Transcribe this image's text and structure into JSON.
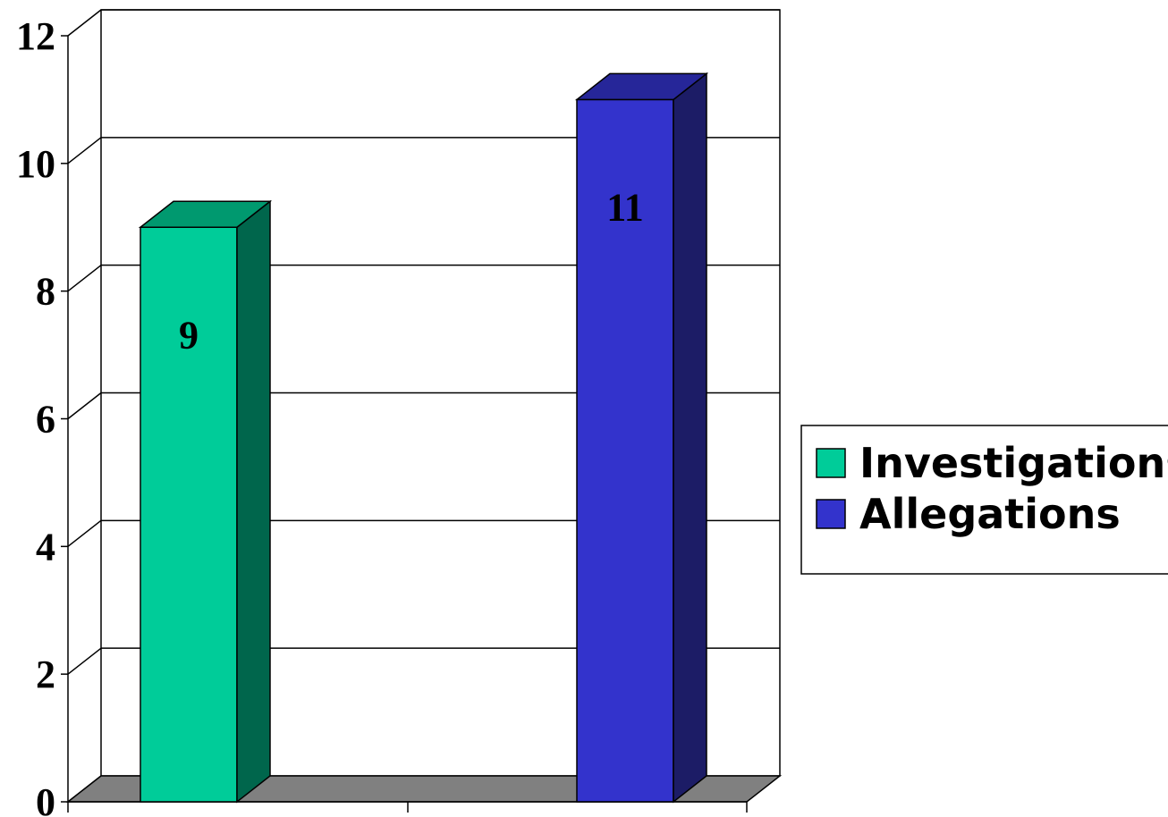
{
  "chart_data": {
    "type": "bar",
    "three_d": true,
    "categories": [
      ""
    ],
    "series": [
      {
        "name": "Investigations",
        "values": [
          9
        ],
        "color": "#00CC99",
        "side_color": "#00664C",
        "top_color": "#00996F"
      },
      {
        "name": "Allegations",
        "values": [
          11
        ],
        "color": "#3333CC",
        "side_color": "#1C1C66",
        "top_color": "#262699"
      }
    ],
    "data_labels": [
      "9",
      "11"
    ],
    "ylim": [
      0,
      12
    ],
    "yticks": [
      "0",
      "2",
      "4",
      "6",
      "8",
      "10",
      "12"
    ],
    "grid": true,
    "legend": "right",
    "floor_color": "#808080",
    "title": "",
    "xlabel": "",
    "ylabel": ""
  }
}
